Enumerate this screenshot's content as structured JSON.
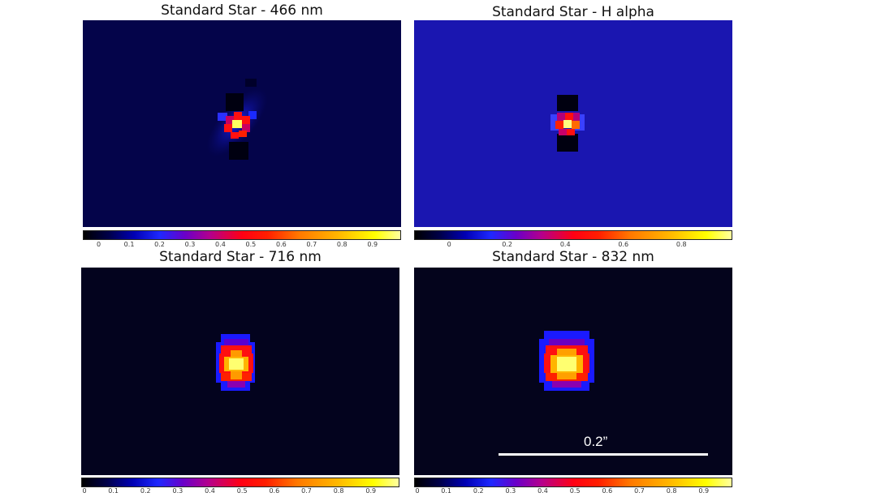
{
  "panels": [
    {
      "title": "Standard Star - 466 nm",
      "ticks": [
        "0",
        "0.1",
        "0.2",
        "0.3",
        "0.4",
        "0.5",
        "0.6",
        "0.7",
        "0.8",
        "0.9"
      ],
      "bg": "#04044a"
    },
    {
      "title": "Standard Star - H alpha",
      "ticks": [
        "0",
        "0.2",
        "0.4",
        "0.6",
        "0.8"
      ],
      "bg": "#1a16b0"
    },
    {
      "title": "Standard Star - 716 nm",
      "ticks": [
        "0",
        "0.1",
        "0.2",
        "0.3",
        "0.4",
        "0.5",
        "0.6",
        "0.7",
        "0.8",
        "0.9"
      ],
      "bg": "#03031e"
    },
    {
      "title": "Standard Star - 832 nm",
      "ticks": [
        "0",
        "0.1",
        "0.2",
        "0.3",
        "0.4",
        "0.5",
        "0.6",
        "0.7",
        "0.8",
        "0.9"
      ],
      "bg": "#04041c"
    }
  ],
  "scale_bar": {
    "label": "0.2”"
  }
}
